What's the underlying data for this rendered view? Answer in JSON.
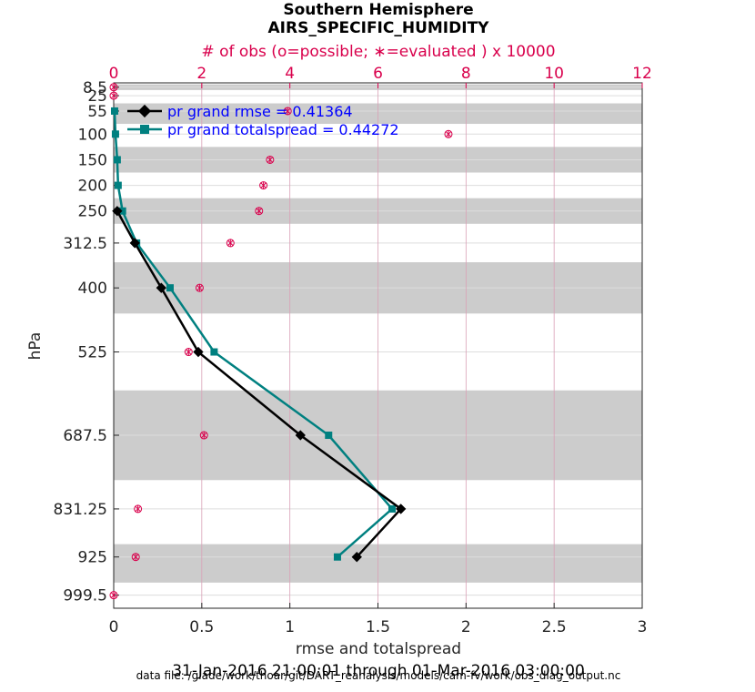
{
  "chart_data": {
    "type": "line",
    "title": "Southern Hemisphere",
    "subtitle": "AIRS_SPECIFIC_HUMIDITY",
    "top_axis": {
      "label": "# of obs (o=possible; ∗=evaluated ) x 10000",
      "range": [
        0,
        12
      ],
      "ticks": [
        "0",
        "2",
        "4",
        "6",
        "8",
        "10",
        "12"
      ],
      "color": "#d9004c"
    },
    "xlabel": "rmse and totalspread",
    "xlim": [
      0,
      3
    ],
    "xticks": [
      "0",
      "0.5",
      "1",
      "1.5",
      "2",
      "2.5",
      "3"
    ],
    "ylabel": "hPa",
    "ylim": [
      1025,
      0
    ],
    "levels": [
      8.5,
      25,
      55,
      100,
      150,
      200,
      250,
      312.5,
      400,
      525,
      687.5,
      831.25,
      925,
      999.5
    ],
    "level_labels": [
      "8.5",
      "25",
      "55",
      "100",
      "150",
      "200",
      "250",
      "312.5",
      "400",
      "525",
      "687.5",
      "831.25",
      "925",
      "999.5"
    ],
    "bands": [
      [
        3,
        14
      ],
      [
        40,
        80
      ],
      [
        125,
        175
      ],
      [
        225,
        275
      ],
      [
        350,
        450
      ],
      [
        600,
        775
      ],
      [
        900,
        975
      ]
    ],
    "series": [
      {
        "name": "pr grand rmse",
        "legend": "pr grand rmse = 0.41364",
        "color": "#000000",
        "marker": "diamond",
        "points": [
          [
            0.02,
            250
          ],
          [
            0.12,
            312.5
          ],
          [
            0.27,
            400
          ],
          [
            0.48,
            525
          ],
          [
            1.06,
            687.5
          ],
          [
            1.63,
            831.25
          ],
          [
            1.38,
            925
          ]
        ]
      },
      {
        "name": "pr grand totalspread",
        "legend": "pr grand totalspread = 0.44272",
        "color": "#008080",
        "marker": "square",
        "points": [
          [
            0.005,
            55
          ],
          [
            0.01,
            100
          ],
          [
            0.02,
            150
          ],
          [
            0.025,
            200
          ],
          [
            0.05,
            250
          ],
          [
            0.13,
            312.5
          ],
          [
            0.32,
            400
          ],
          [
            0.57,
            525
          ],
          [
            1.22,
            687.5
          ],
          [
            1.58,
            831.25
          ],
          [
            1.27,
            925
          ]
        ]
      }
    ],
    "obs_possible": [
      [
        0.0,
        8.5
      ],
      [
        0.0,
        25
      ],
      [
        3.95,
        55
      ],
      [
        7.6,
        100
      ],
      [
        3.55,
        150
      ],
      [
        3.4,
        200
      ],
      [
        3.3,
        250
      ],
      [
        2.65,
        312.5
      ],
      [
        1.95,
        400
      ],
      [
        1.7,
        525
      ],
      [
        2.05,
        687.5
      ],
      [
        0.55,
        831.25
      ],
      [
        0.5,
        925
      ],
      [
        0.0,
        999.5
      ]
    ],
    "obs_evaluated": [
      [
        0.0,
        8.5
      ],
      [
        0.0,
        25
      ],
      [
        3.95,
        55
      ],
      [
        7.6,
        100
      ],
      [
        3.55,
        150
      ],
      [
        3.4,
        200
      ],
      [
        3.3,
        250
      ],
      [
        2.65,
        312.5
      ],
      [
        1.95,
        400
      ],
      [
        1.7,
        525
      ],
      [
        2.05,
        687.5
      ],
      [
        0.55,
        831.25
      ],
      [
        0.5,
        925
      ],
      [
        0.0,
        999.5
      ]
    ]
  },
  "footer": {
    "date_range": "31-Jan-2016 21:00:01 through 01-Mar-2016 03:00:00",
    "data_file": "data file: /glade/work/thoar/git/DART_reanalysis/models/cam-fv/work/obs_diag_output.nc"
  },
  "colors": {
    "top_axis": "#d9004c",
    "band": "#cccccc",
    "grid": "#dddddd",
    "vgrid": "#d9a0b6",
    "legend_text": "#0000ff"
  }
}
